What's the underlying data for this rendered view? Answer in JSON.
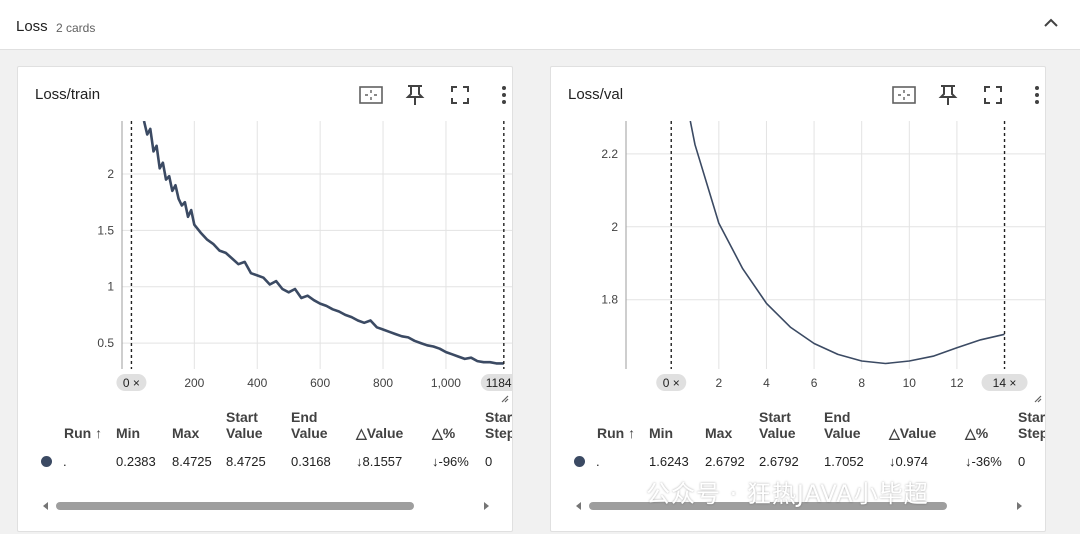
{
  "section": {
    "title": "Loss",
    "count": "2 cards"
  },
  "cards": [
    {
      "title": "Loss/train",
      "table": {
        "headers": {
          "run": "Run ↑",
          "min": "Min",
          "max": "Max",
          "start1": "Start",
          "start2": "Value",
          "end1": "End",
          "end2": "Value",
          "dvalue": "△Value",
          "dpct": "△%",
          "step1": "Star",
          "step2": "Step"
        },
        "row": {
          "run": ".",
          "min": "0.2383",
          "max": "8.4725",
          "start": "8.4725",
          "end": "0.3168",
          "dvalue": "↓8.1557",
          "dpct": "↓-96%",
          "step": "0"
        }
      },
      "chart_data": {
        "type": "line",
        "title": "Loss/train",
        "xlim": [
          -30,
          1210
        ],
        "ylim": [
          0.27,
          2.47
        ],
        "xticks": [
          "200",
          "400",
          "600",
          "800",
          "1,000"
        ],
        "xtick_values": [
          200,
          400,
          600,
          800,
          1000
        ],
        "yticks": [
          "0.5",
          "1",
          "1.5",
          "2"
        ],
        "ytick_values": [
          0.5,
          1,
          1.5,
          2
        ],
        "range_start": "0 ×",
        "range_end": "1184 ×",
        "range_start_value": 0,
        "range_end_value": 1184,
        "series": [
          {
            "color": "#3b4a63",
            "x": [
              40,
              50,
              60,
              70,
              80,
              90,
              100,
              110,
              120,
              130,
              140,
              150,
              160,
              170,
              180,
              190,
              200,
              220,
              240,
              260,
              280,
              300,
              320,
              340,
              360,
              380,
              400,
              420,
              440,
              460,
              480,
              500,
              520,
              540,
              560,
              580,
              600,
              620,
              640,
              660,
              680,
              700,
              720,
              740,
              760,
              780,
              800,
              820,
              840,
              860,
              880,
              900,
              920,
              940,
              960,
              980,
              1000,
              1020,
              1040,
              1060,
              1080,
              1100,
              1120,
              1140,
              1160,
              1184
            ],
            "y": [
              2.47,
              2.35,
              2.4,
              2.2,
              2.25,
              2.05,
              2.1,
              1.95,
              1.98,
              1.85,
              1.9,
              1.78,
              1.72,
              1.75,
              1.62,
              1.68,
              1.55,
              1.48,
              1.42,
              1.38,
              1.32,
              1.3,
              1.25,
              1.2,
              1.22,
              1.12,
              1.1,
              1.08,
              1.02,
              1.05,
              0.98,
              0.95,
              0.98,
              0.9,
              0.92,
              0.88,
              0.85,
              0.83,
              0.8,
              0.78,
              0.75,
              0.73,
              0.7,
              0.68,
              0.7,
              0.64,
              0.62,
              0.6,
              0.58,
              0.56,
              0.55,
              0.52,
              0.5,
              0.48,
              0.47,
              0.45,
              0.42,
              0.4,
              0.38,
              0.36,
              0.37,
              0.34,
              0.33,
              0.33,
              0.32,
              0.32
            ]
          }
        ]
      }
    },
    {
      "title": "Loss/val",
      "table": {
        "headers": {
          "run": "Run ↑",
          "min": "Min",
          "max": "Max",
          "start1": "Start",
          "start2": "Value",
          "end1": "End",
          "end2": "Value",
          "dvalue": "△Value",
          "dpct": "△%",
          "step1": "Star",
          "step2": "Step"
        },
        "row": {
          "run": ".",
          "min": "1.6243",
          "max": "2.6792",
          "start": "2.6792",
          "end": "1.7052",
          "dvalue": "↓0.974",
          "dpct": "↓-36%",
          "step": "0"
        }
      },
      "chart_data": {
        "type": "line",
        "title": "Loss/val",
        "xlim": [
          -1.9,
          15.7
        ],
        "ylim": [
          1.61,
          2.29
        ],
        "xticks": [
          "2",
          "4",
          "6",
          "8",
          "10",
          "12"
        ],
        "xtick_values": [
          2,
          4,
          6,
          8,
          10,
          12
        ],
        "yticks": [
          "1.8",
          "2",
          "2.2"
        ],
        "ytick_values": [
          1.8,
          2,
          2.2
        ],
        "range_start": "0 ×",
        "range_end": "14 ×",
        "range_start_value": 0,
        "range_end_value": 14,
        "series": [
          {
            "color": "#3b4a63",
            "x": [
              0.8,
              1,
              2,
              3,
              4,
              5,
              6,
              7,
              8,
              9,
              10,
              11,
              12,
              13,
              14
            ],
            "y": [
              2.29,
              2.225,
              2.01,
              1.885,
              1.79,
              1.725,
              1.68,
              1.65,
              1.632,
              1.625,
              1.632,
              1.645,
              1.668,
              1.69,
              1.7052
            ]
          }
        ]
      }
    }
  ],
  "watermark": "公众号 · 狂热JAVA小毕超"
}
